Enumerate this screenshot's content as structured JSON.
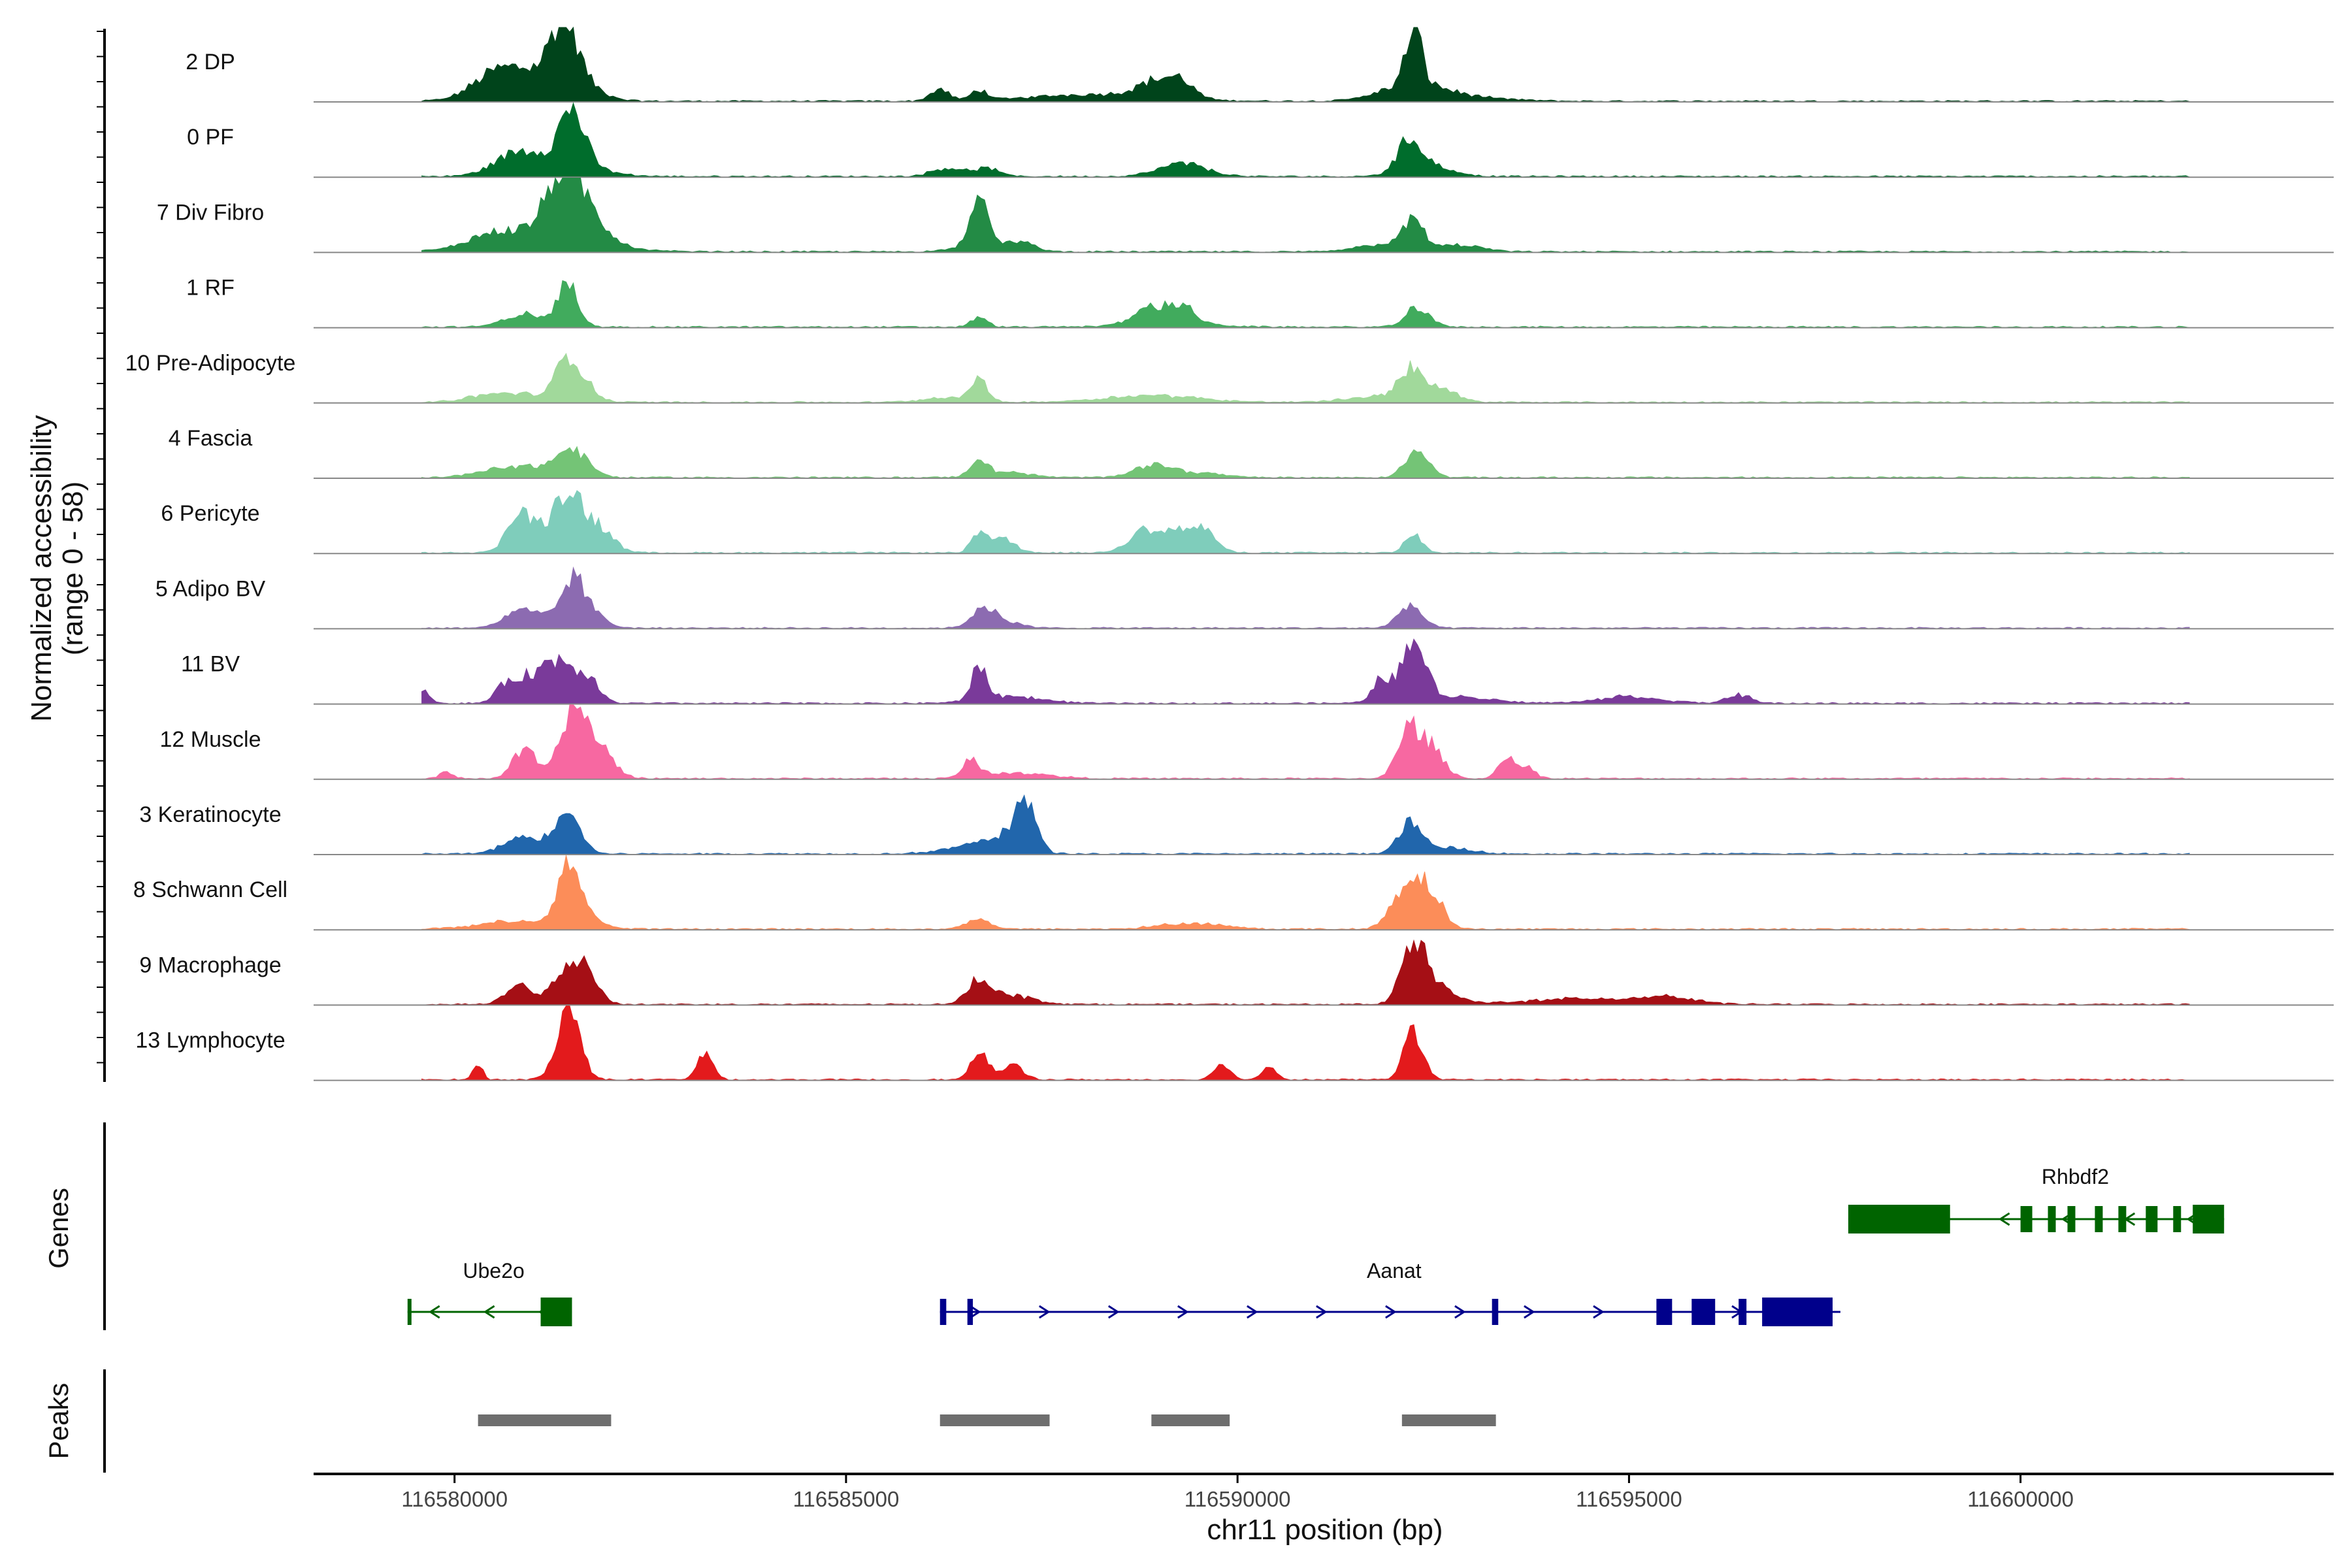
{
  "chart_data": {
    "type": "area",
    "chromosome": "chr11",
    "xlabel": "chr11 position (bp)",
    "xlim": [
      116578200,
      116604000
    ],
    "xticks": [
      116580000,
      116585000,
      116590000,
      116595000,
      116600000
    ],
    "xtick_labels": [
      "116580000",
      "116585000",
      "116590000",
      "116595000",
      "116600000"
    ],
    "ylabel_line1": "Normalized accessibility",
    "ylabel_line2": "(range 0 - 58)",
    "yrange": [
      0,
      58
    ],
    "tracks": [
      {
        "name": "2 DP",
        "color": "#00441b",
        "peaks": [
          [
            116580500,
            300,
            30
          ],
          [
            116580900,
            400,
            38
          ],
          [
            116581400,
            150,
            92
          ],
          [
            116581450,
            300,
            45
          ],
          [
            116586200,
            120,
            20
          ],
          [
            116586700,
            100,
            18
          ],
          [
            116588200,
            800,
            12
          ],
          [
            116589000,
            250,
            30
          ],
          [
            116589300,
            150,
            20
          ],
          [
            116592250,
            100,
            95
          ],
          [
            116592250,
            400,
            30
          ],
          [
            116593000,
            500,
            5
          ]
        ]
      },
      {
        "name": "0 PF",
        "color": "#006d2c",
        "peaks": [
          [
            116580800,
            300,
            35
          ],
          [
            116581500,
            150,
            90
          ],
          [
            116581400,
            400,
            28
          ],
          [
            116586300,
            200,
            15
          ],
          [
            116586800,
            150,
            14
          ],
          [
            116589300,
            300,
            22
          ],
          [
            116592200,
            150,
            50
          ],
          [
            116592400,
            300,
            20
          ]
        ]
      },
      {
        "name": "7 Div Fibro",
        "color": "#238b45",
        "peaks": [
          [
            116580400,
            250,
            12
          ],
          [
            116581100,
            600,
            40
          ],
          [
            116581400,
            200,
            100
          ],
          [
            116581700,
            250,
            40
          ],
          [
            116586700,
            120,
            65
          ],
          [
            116586800,
            300,
            18
          ],
          [
            116587300,
            150,
            10
          ],
          [
            116592000,
            400,
            15
          ],
          [
            116592250,
            120,
            45
          ],
          [
            116592900,
            250,
            10
          ]
        ]
      },
      {
        "name": "1 RF",
        "color": "#41ab5d",
        "peaks": [
          [
            116580900,
            250,
            22
          ],
          [
            116581450,
            130,
            72
          ],
          [
            116586700,
            100,
            18
          ],
          [
            116588900,
            200,
            28
          ],
          [
            116589300,
            150,
            30
          ],
          [
            116589100,
            500,
            8
          ],
          [
            116592300,
            150,
            35
          ]
        ]
      },
      {
        "name": "10 Pre-Adipocyte",
        "color": "#a1d99b",
        "peaks": [
          [
            116580400,
            300,
            10
          ],
          [
            116580900,
            300,
            12
          ],
          [
            116581450,
            150,
            75
          ],
          [
            116581700,
            150,
            20
          ],
          [
            116586700,
            100,
            40
          ],
          [
            116586300,
            300,
            8
          ],
          [
            116588900,
            600,
            12
          ],
          [
            116591800,
            400,
            10
          ],
          [
            116592200,
            150,
            50
          ],
          [
            116592600,
            200,
            22
          ]
        ]
      },
      {
        "name": "4 Fascia",
        "color": "#74c476",
        "peaks": [
          [
            116580800,
            400,
            20
          ],
          [
            116581500,
            200,
            45
          ],
          [
            116586700,
            100,
            25
          ],
          [
            116587000,
            300,
            10
          ],
          [
            116588900,
            250,
            18
          ],
          [
            116589400,
            400,
            8
          ],
          [
            116592300,
            150,
            48
          ]
        ]
      },
      {
        "name": "6 Pericyte",
        "color": "#7fcdbb",
        "peaks": [
          [
            116580800,
            150,
            45
          ],
          [
            116581100,
            250,
            40
          ],
          [
            116581450,
            150,
            90
          ],
          [
            116581800,
            200,
            50
          ],
          [
            116586700,
            100,
            35
          ],
          [
            116587000,
            150,
            25
          ],
          [
            116588800,
            200,
            35
          ],
          [
            116589300,
            250,
            38
          ],
          [
            116589600,
            150,
            20
          ],
          [
            116592250,
            100,
            35
          ]
        ]
      },
      {
        "name": "5 Adipo BV",
        "color": "#8c6bb1",
        "peaks": [
          [
            116580900,
            250,
            30
          ],
          [
            116581500,
            150,
            70
          ],
          [
            116581700,
            200,
            25
          ],
          [
            116586750,
            150,
            30
          ],
          [
            116587000,
            200,
            12
          ],
          [
            116592200,
            150,
            40
          ]
        ]
      },
      {
        "name": "11 BV",
        "color": "#7a3a9a",
        "peaks": [
          [
            116579600,
            80,
            25
          ],
          [
            116580700,
            150,
            35
          ],
          [
            116581100,
            200,
            55
          ],
          [
            116581400,
            150,
            50
          ],
          [
            116581700,
            150,
            45
          ],
          [
            116586700,
            100,
            55
          ],
          [
            116587100,
            400,
            12
          ],
          [
            116592250,
            150,
            95
          ],
          [
            116591850,
            120,
            40
          ],
          [
            116592700,
            500,
            12
          ],
          [
            116595000,
            400,
            12
          ],
          [
            116596400,
            150,
            15
          ]
        ]
      },
      {
        "name": "12 Muscle",
        "color": "#f768a1",
        "peaks": [
          [
            116579900,
            80,
            12
          ],
          [
            116580900,
            150,
            50
          ],
          [
            116581500,
            150,
            110
          ],
          [
            116581800,
            200,
            60
          ],
          [
            116586600,
            100,
            35
          ],
          [
            116587200,
            400,
            10
          ],
          [
            116592200,
            150,
            85
          ],
          [
            116592500,
            150,
            45
          ],
          [
            116593400,
            100,
            20
          ],
          [
            116593600,
            150,
            25
          ]
        ]
      },
      {
        "name": "3 Keratinocyte",
        "color": "#2166ac",
        "peaks": [
          [
            116580900,
            250,
            30
          ],
          [
            116581450,
            150,
            82
          ],
          [
            116586700,
            400,
            15
          ],
          [
            116587300,
            130,
            82
          ],
          [
            116587000,
            200,
            20
          ],
          [
            116592200,
            150,
            50
          ],
          [
            116592700,
            300,
            10
          ]
        ]
      },
      {
        "name": "8 Schwann Cell",
        "color": "#fc8d59",
        "peaks": [
          [
            116580900,
            500,
            15
          ],
          [
            116581450,
            120,
            85
          ],
          [
            116581600,
            200,
            30
          ],
          [
            116586700,
            150,
            18
          ],
          [
            116589400,
            400,
            10
          ],
          [
            116592200,
            200,
            85
          ],
          [
            116592500,
            150,
            40
          ]
        ]
      },
      {
        "name": "9 Macrophage",
        "color": "#a50f15",
        "peaks": [
          [
            116580800,
            150,
            35
          ],
          [
            116581450,
            200,
            60
          ],
          [
            116581700,
            150,
            40
          ],
          [
            116586700,
            150,
            40
          ],
          [
            116587100,
            300,
            15
          ],
          [
            116592250,
            150,
            90
          ],
          [
            116592500,
            250,
            30
          ],
          [
            116594500,
            800,
            10
          ],
          [
            116595500,
            300,
            10
          ]
        ]
      },
      {
        "name": "13 Lymphocyte",
        "color": "#e31a1c",
        "peaks": [
          [
            116580300,
            60,
            25
          ],
          [
            116581450,
            150,
            120
          ],
          [
            116583200,
            100,
            45
          ],
          [
            116586700,
            100,
            50
          ],
          [
            116587100,
            150,
            25
          ],
          [
            116592250,
            120,
            85
          ],
          [
            116589800,
            100,
            25
          ],
          [
            116590400,
            100,
            20
          ]
        ]
      }
    ],
    "panels": [
      "Genes",
      "Peaks"
    ],
    "genes": [
      {
        "name": "Ube2o",
        "color": "#006400",
        "strand": "-",
        "start": 116579400,
        "end": 116581500,
        "exons": [
          [
            116581100,
            116581500
          ],
          [
            116579400,
            116579420
          ]
        ]
      },
      {
        "name": "Aanat",
        "color": "#00008b",
        "strand": "+",
        "start": 116586200,
        "end": 116597700,
        "exons": [
          [
            116586200,
            116586280
          ],
          [
            116586550,
            116586620
          ],
          [
            116593250,
            116593330
          ],
          [
            116595350,
            116595550
          ],
          [
            116595800,
            116596100
          ],
          [
            116596400,
            116596500
          ],
          [
            116596700,
            116597600
          ]
        ]
      },
      {
        "name": "Rhbdf2",
        "color": "#006400",
        "strand": "-",
        "start": 116597800,
        "end": 116602600,
        "exons": [
          [
            116597800,
            116599100
          ],
          [
            116600000,
            116600150
          ],
          [
            116600350,
            116600450
          ],
          [
            116600600,
            116600700
          ],
          [
            116600950,
            116601050
          ],
          [
            116601250,
            116601350
          ],
          [
            116601600,
            116601750
          ],
          [
            116601950,
            116602050
          ],
          [
            116602200,
            116602600
          ]
        ]
      }
    ],
    "peak_regions": [
      [
        116580300,
        116582000
      ],
      [
        116586200,
        116587600
      ],
      [
        116588900,
        116589900
      ],
      [
        116592100,
        116593300
      ]
    ]
  }
}
